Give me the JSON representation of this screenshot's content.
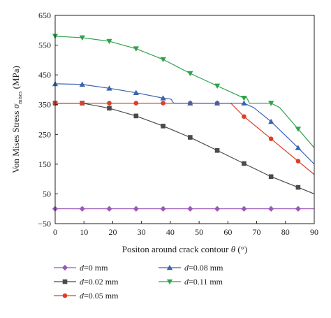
{
  "chart_data": {
    "type": "line",
    "title": "",
    "xlabel_prefix": "Positon around crack contour ",
    "xlabel_symbol": "θ",
    "xlabel_suffix": " (°)",
    "ylabel_prefix": "Von Mises Stress ",
    "ylabel_symbol": "σ",
    "ylabel_sub": "mises",
    "ylabel_suffix": " (MPa)",
    "xlim": [
      0,
      90
    ],
    "ylim": [
      -50,
      650
    ],
    "xticks": [
      "0",
      "10",
      "20",
      "30",
      "40",
      "50",
      "60",
      "70",
      "80",
      "90"
    ],
    "yticks": [
      "−50",
      "50",
      "150",
      "250",
      "350",
      "450",
      "550",
      "650"
    ],
    "ytick_values": [
      -50,
      50,
      150,
      250,
      350,
      450,
      550,
      650
    ],
    "xtick_values": [
      0,
      10,
      20,
      30,
      40,
      50,
      60,
      70,
      80,
      90
    ],
    "grid": false,
    "legend_position": "bottom",
    "series": [
      {
        "name": "d=0 mm",
        "legend_var": "d",
        "legend_rest": "=0 mm",
        "color": "#9b59b6",
        "marker": "diamond",
        "line": [
          [
            0,
            0
          ],
          [
            90,
            0
          ]
        ],
        "markers": [
          [
            0,
            0
          ],
          [
            9.4,
            0
          ],
          [
            18.8,
            0
          ],
          [
            28.1,
            0
          ],
          [
            37.5,
            0
          ],
          [
            46.9,
            0
          ],
          [
            56.3,
            0
          ],
          [
            65.6,
            0
          ],
          [
            75,
            0
          ],
          [
            84.4,
            0
          ]
        ]
      },
      {
        "name": "d=0.02 mm",
        "legend_var": "d",
        "legend_rest": "=0.02 mm",
        "color": "#4a4a4a",
        "marker": "square",
        "line": [
          [
            0,
            355
          ],
          [
            9.4,
            355
          ],
          [
            18.8,
            338
          ],
          [
            28.1,
            312
          ],
          [
            37.5,
            278
          ],
          [
            46.9,
            240
          ],
          [
            56.3,
            196
          ],
          [
            65.6,
            152
          ],
          [
            75,
            108
          ],
          [
            84.4,
            72
          ],
          [
            90,
            50
          ]
        ],
        "markers": [
          [
            0,
            355
          ],
          [
            9.4,
            355
          ],
          [
            18.8,
            338
          ],
          [
            28.1,
            312
          ],
          [
            37.5,
            278
          ],
          [
            46.9,
            240
          ],
          [
            56.3,
            196
          ],
          [
            65.6,
            152
          ],
          [
            75,
            108
          ],
          [
            84.4,
            72
          ]
        ]
      },
      {
        "name": "d=0.05 mm",
        "legend_var": "d",
        "legend_rest": "=0.05 mm",
        "color": "#d9402b",
        "marker": "circle",
        "line": [
          [
            0,
            355
          ],
          [
            9.4,
            355
          ],
          [
            18.8,
            355
          ],
          [
            28.1,
            355
          ],
          [
            37.5,
            355
          ],
          [
            46.9,
            355
          ],
          [
            56.3,
            355
          ],
          [
            61,
            355
          ],
          [
            65.6,
            310
          ],
          [
            75,
            235
          ],
          [
            84.4,
            160
          ],
          [
            90,
            115
          ]
        ],
        "markers": [
          [
            0,
            355
          ],
          [
            9.4,
            355
          ],
          [
            18.8,
            355
          ],
          [
            28.1,
            355
          ],
          [
            37.5,
            355
          ],
          [
            46.9,
            355
          ],
          [
            56.3,
            355
          ],
          [
            65.6,
            310
          ],
          [
            75,
            235
          ],
          [
            84.4,
            160
          ]
        ]
      },
      {
        "name": "d=0.08 mm",
        "legend_var": "d",
        "legend_rest": "=0.08 mm",
        "color": "#3a63b0",
        "marker": "triangle-up",
        "line": [
          [
            0,
            420
          ],
          [
            9.4,
            418
          ],
          [
            18.8,
            405
          ],
          [
            28.1,
            390
          ],
          [
            37.5,
            372
          ],
          [
            39.5,
            370
          ],
          [
            40.3,
            368
          ],
          [
            40.8,
            360
          ],
          [
            41.2,
            355
          ],
          [
            46.9,
            355
          ],
          [
            56.3,
            355
          ],
          [
            65.6,
            355
          ],
          [
            69,
            340
          ],
          [
            75,
            293
          ],
          [
            84.4,
            205
          ],
          [
            90,
            150
          ]
        ],
        "markers": [
          [
            0,
            420
          ],
          [
            9.4,
            418
          ],
          [
            18.8,
            405
          ],
          [
            28.1,
            390
          ],
          [
            37.5,
            372
          ],
          [
            46.9,
            355
          ],
          [
            56.3,
            355
          ],
          [
            65.6,
            355
          ],
          [
            75,
            293
          ],
          [
            84.4,
            205
          ]
        ]
      },
      {
        "name": "d=0.11 mm",
        "legend_var": "d",
        "legend_rest": "=0.11 mm",
        "color": "#2ea34a",
        "marker": "triangle-down",
        "line": [
          [
            0,
            580
          ],
          [
            9.4,
            575
          ],
          [
            18.8,
            563
          ],
          [
            28.1,
            538
          ],
          [
            37.5,
            502
          ],
          [
            46.9,
            455
          ],
          [
            56.3,
            413
          ],
          [
            65.6,
            372
          ],
          [
            66.4,
            375
          ],
          [
            67,
            365
          ],
          [
            67.5,
            355
          ],
          [
            75,
            355
          ],
          [
            78,
            340
          ],
          [
            84.4,
            268
          ],
          [
            90,
            205
          ]
        ],
        "markers": [
          [
            0,
            580
          ],
          [
            9.4,
            575
          ],
          [
            18.8,
            563
          ],
          [
            28.1,
            538
          ],
          [
            37.5,
            502
          ],
          [
            46.9,
            455
          ],
          [
            56.3,
            413
          ],
          [
            65.6,
            372
          ],
          [
            75,
            355
          ],
          [
            84.4,
            268
          ]
        ]
      }
    ]
  }
}
